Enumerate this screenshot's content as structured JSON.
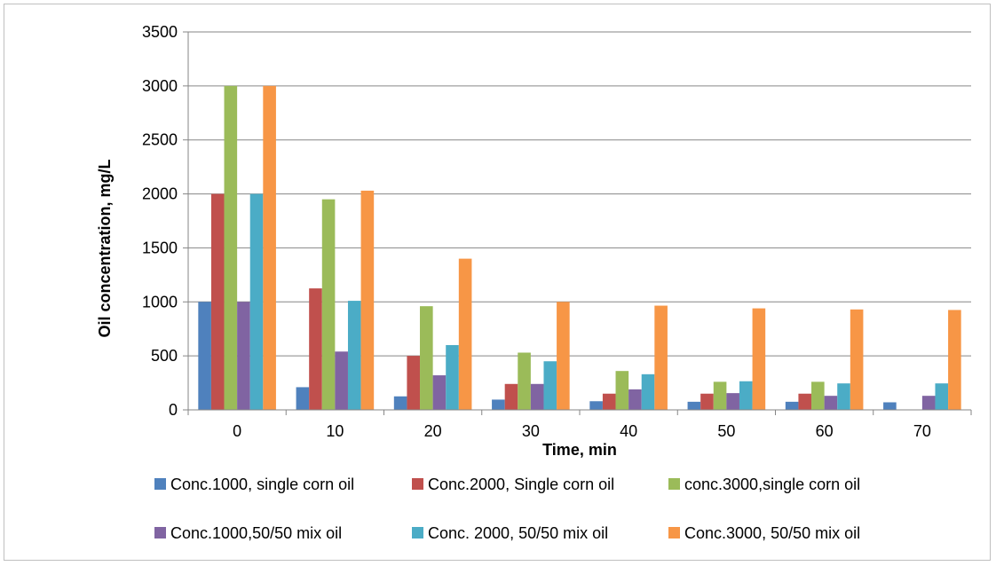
{
  "chart_data": {
    "type": "bar",
    "title": "",
    "xlabel": "Time, min",
    "ylabel": "Oil concentration, mg/L",
    "ylim": [
      0,
      3500
    ],
    "yticks": [
      "0",
      "500",
      "1000",
      "1500",
      "2000",
      "2500",
      "3000",
      "3500"
    ],
    "grid": true,
    "legend_position": "bottom",
    "categories": [
      "0",
      "10",
      "20",
      "30",
      "40",
      "50",
      "60",
      "70"
    ],
    "series": [
      {
        "name": "Conc.1000, single corn oil",
        "color": "#4f81bd",
        "values": [
          1000,
          210,
          125,
          95,
          80,
          75,
          75,
          70
        ]
      },
      {
        "name": "Conc.2000,  Single corn oil",
        "color": "#c0504d",
        "values": [
          2000,
          1125,
          500,
          240,
          150,
          150,
          150,
          0
        ]
      },
      {
        "name": "conc.3000,single corn oil",
        "color": "#9bbb59",
        "values": [
          3000,
          1950,
          960,
          530,
          360,
          260,
          260,
          0
        ]
      },
      {
        "name": "Conc.1000,50/50 mix oil",
        "color": "#8064a2",
        "values": [
          1000,
          540,
          320,
          240,
          190,
          155,
          130,
          130
        ]
      },
      {
        "name": "Conc. 2000, 50/50 mix oil",
        "color": "#4bacc6",
        "values": [
          2000,
          1010,
          600,
          450,
          330,
          265,
          245,
          245
        ]
      },
      {
        "name": "Conc.3000, 50/50 mix oil",
        "color": "#f79646",
        "values": [
          3000,
          2030,
          1400,
          1000,
          965,
          940,
          930,
          925
        ]
      }
    ]
  }
}
